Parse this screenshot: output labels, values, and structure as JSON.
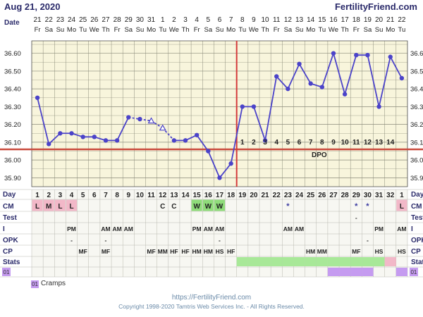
{
  "header": {
    "date": "Aug 21, 2020",
    "site": "FertilityFriend.com"
  },
  "labels": {
    "date": "Date",
    "day": "Day",
    "cm": "CM",
    "test": "Test",
    "i": "I",
    "opk": "OPK",
    "cp": "CP",
    "stats": "Stats",
    "stats_badge": "01",
    "dpo": "DPO"
  },
  "colors": {
    "grid_bg": "#f8f5dc",
    "grid_line": "#8a8a7a",
    "temp_line": "#4b43c9",
    "coverline": "#c94a3c",
    "ov_line": "#d43b3b",
    "cm_pink": "#f2b8c8",
    "cm_green": "#8fdc7a",
    "stats_green": "#a8e898",
    "stats_purple": "#c59bf0",
    "stats_pink": "#f2b8c8"
  },
  "chart_data": {
    "type": "line",
    "ylabel": "",
    "ylim": [
      35.85,
      36.67
    ],
    "yticks": [
      "35.90",
      "36.00",
      "36.10",
      "36.20",
      "36.30",
      "36.40",
      "36.50",
      "36.60"
    ],
    "date_labels": [
      "21",
      "22",
      "23",
      "24",
      "25",
      "26",
      "27",
      "28",
      "29",
      "30",
      "31",
      "1",
      "2",
      "3",
      "4",
      "5",
      "6",
      "7",
      "8",
      "9",
      "10",
      "11",
      "12",
      "13",
      "14",
      "15",
      "16",
      "17",
      "18",
      "19",
      "20",
      "21",
      "22"
    ],
    "weekdays": [
      "Fr",
      "Sa",
      "Su",
      "Mo",
      "Tu",
      "We",
      "Th",
      "Fr",
      "Sa",
      "Su",
      "Mo",
      "Tu",
      "We",
      "Th",
      "Fr",
      "Sa",
      "Su",
      "Mo",
      "Tu",
      "We",
      "Th",
      "Fr",
      "Sa",
      "Su",
      "Mo",
      "Tu",
      "We",
      "Th",
      "Fr",
      "Sa",
      "Su",
      "Mo",
      "Tu"
    ],
    "cycle_days": [
      "1",
      "2",
      "3",
      "4",
      "5",
      "6",
      "7",
      "8",
      "9",
      "10",
      "11",
      "12",
      "13",
      "14",
      "15",
      "16",
      "17",
      "18",
      "19",
      "20",
      "21",
      "22",
      "23",
      "24",
      "25",
      "26",
      "27",
      "28",
      "29",
      "30",
      "31",
      "32",
      "1"
    ],
    "temperatures": [
      36.35,
      36.09,
      36.15,
      36.15,
      36.13,
      36.13,
      36.11,
      36.11,
      36.24,
      36.23,
      36.22,
      36.18,
      36.11,
      36.11,
      36.14,
      36.05,
      35.9,
      35.98,
      36.3,
      36.3,
      36.11,
      36.47,
      36.4,
      36.54,
      36.43,
      36.41,
      36.6,
      36.37,
      36.59,
      36.59,
      36.3,
      36.58,
      36.46
    ],
    "open_markers": [
      10,
      11
    ],
    "dashed_segments": [
      [
        8,
        10
      ],
      [
        10,
        11
      ]
    ],
    "coverline": 36.06,
    "ovulation_after_index": 17,
    "dpo_numbers": [
      "1",
      "2",
      "3",
      "4",
      "5",
      "6",
      "7",
      "8",
      "9",
      "10",
      "11",
      "12",
      "13",
      "14"
    ],
    "dpo_start_index": 18,
    "cm": {
      "0": "L",
      "1": "M",
      "2": "L",
      "3": "L",
      "11": "C",
      "12": "C",
      "14": "W",
      "15": "W",
      "16": "W",
      "22": "*",
      "28": "*",
      "29": "*",
      "32": "L"
    },
    "test": {
      "28": "-"
    },
    "intercourse": {
      "3": "PM",
      "6": "AM",
      "7": "AM",
      "8": "AM",
      "14": "PM",
      "15": "AM",
      "16": "AM",
      "22": "AM",
      "23": "AM",
      "30": "PM",
      "32": "AM"
    },
    "opk": {
      "3": "-",
      "6": "-",
      "16": "-",
      "29": "-"
    },
    "cp": {
      "4": "MF",
      "6": "MF",
      "10": "MF",
      "11": "MM",
      "12": "HF",
      "13": "HF",
      "14": "HM",
      "15": "HM",
      "16": "HS",
      "17": "HF",
      "24": "HM",
      "25": "MM",
      "28": "MF",
      "30": "HS",
      "32": "HS"
    },
    "stats_green_range": [
      18,
      30
    ],
    "stats_pink": [
      31
    ],
    "badge_purple": [
      26,
      27,
      28,
      29,
      32
    ],
    "badge_label": "01"
  },
  "legend": {
    "badge": "01",
    "label": "Cramps"
  },
  "footer": {
    "url": "https://FertilityFriend.com",
    "copyright": "Copyright 1998-2020 Tamtris Web Services Inc. - All Rights Reserved."
  }
}
